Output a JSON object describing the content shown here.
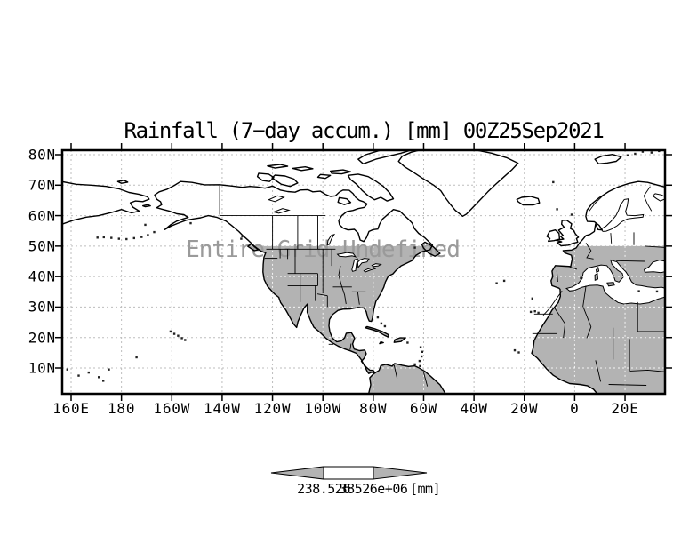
{
  "title": "Rainfall (7−day accum.) [mm] 00Z25Sep2021",
  "watermark": "Entire Grid Undefined",
  "axes": {
    "x_ticks": [
      {
        "label": "160E",
        "lon": 160
      },
      {
        "label": "180",
        "lon": 180
      },
      {
        "label": "160W",
        "lon": 200
      },
      {
        "label": "140W",
        "lon": 220
      },
      {
        "label": "120W",
        "lon": 240
      },
      {
        "label": "100W",
        "lon": 260
      },
      {
        "label": "80W",
        "lon": 280
      },
      {
        "label": "60W",
        "lon": 300
      },
      {
        "label": "40W",
        "lon": 320
      },
      {
        "label": "20W",
        "lon": 340
      },
      {
        "label": "0",
        "lon": 360
      },
      {
        "label": "20E",
        "lon": 380
      }
    ],
    "y_ticks": [
      {
        "label": "80N",
        "lat": 80
      },
      {
        "label": "70N",
        "lat": 70
      },
      {
        "label": "60N",
        "lat": 60
      },
      {
        "label": "50N",
        "lat": 50
      },
      {
        "label": "40N",
        "lat": 40
      },
      {
        "label": "30N",
        "lat": 30
      },
      {
        "label": "20N",
        "lat": 20
      },
      {
        "label": "10N",
        "lat": 10
      }
    ]
  },
  "colorbar": {
    "left_label": "238.526",
    "right_label": "38526e+06",
    "unit": "[mm]"
  },
  "colors": {
    "land": "#b3b3b3",
    "grid": "#bdbdbd",
    "coast": "#000000",
    "watermark": "#9a9a9a",
    "background": "#ffffff"
  }
}
